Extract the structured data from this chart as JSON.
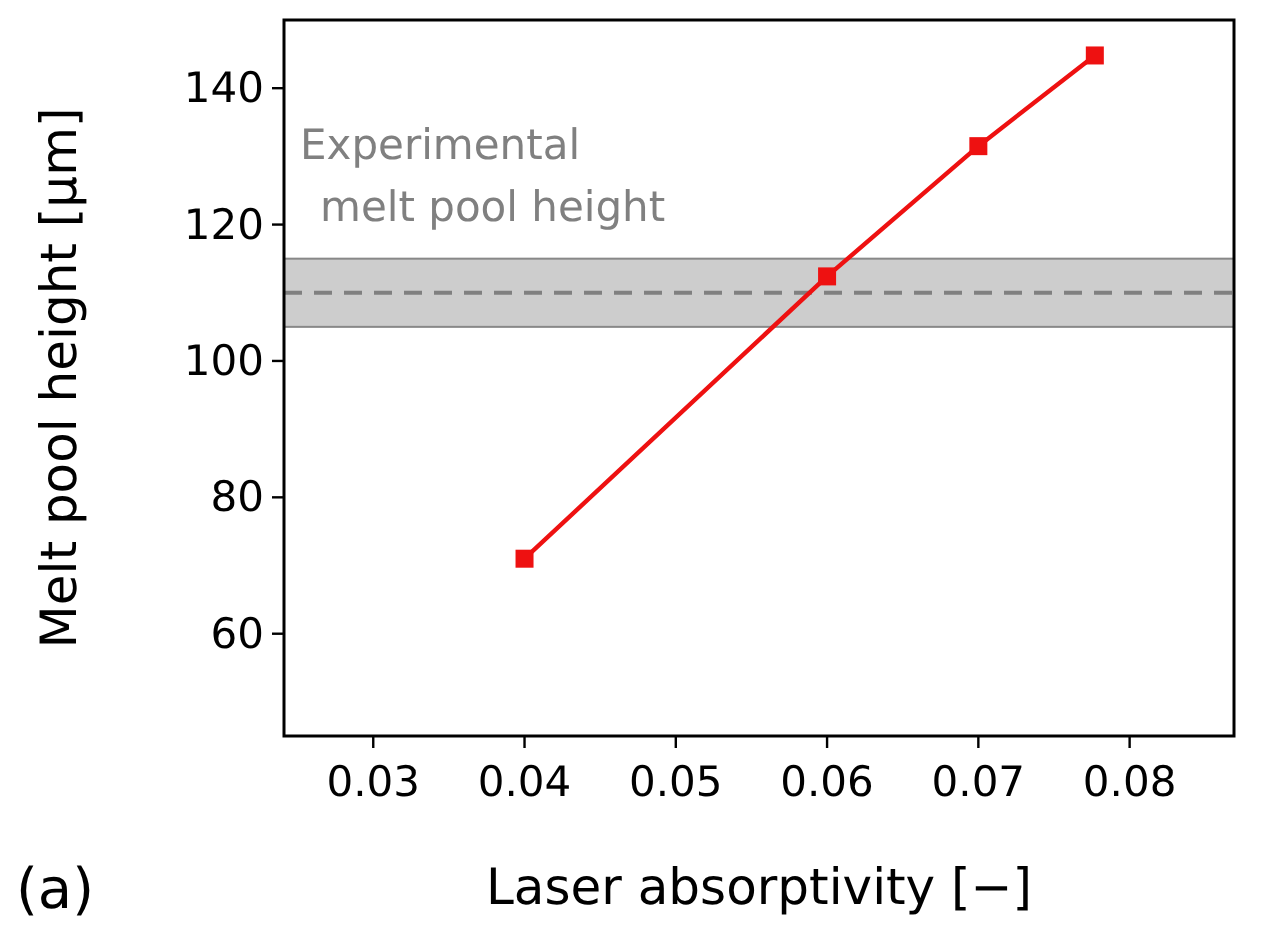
{
  "chart_data": {
    "type": "line",
    "xlabel": "Laser absorptivity [−]",
    "ylabel": "Melt pool height [µm]",
    "x": [
      0.04,
      0.06,
      0.07,
      0.0777
    ],
    "series": [
      {
        "color": "#ee1111",
        "values": [
          71,
          112.4,
          131.5,
          144.8
        ]
      }
    ],
    "marker": "square",
    "line_style": "solid",
    "xlim": [
      0.0241,
      0.0869
    ],
    "xticks": [
      0.03,
      0.04,
      0.05,
      0.06,
      0.07,
      0.08
    ],
    "ylim": [
      45,
      150
    ],
    "yticks": [
      60,
      80,
      100,
      120,
      140
    ],
    "ref_lines": [
      {
        "axis": "y",
        "value": 110,
        "color": "#808080",
        "line_style": "dashed"
      }
    ],
    "bands": [
      {
        "axis": "y",
        "from": 105,
        "to": 115,
        "color": "#c8c8c8",
        "label": "Experimental\nmelt pool height"
      }
    ],
    "annotations": [
      "(a)"
    ]
  }
}
